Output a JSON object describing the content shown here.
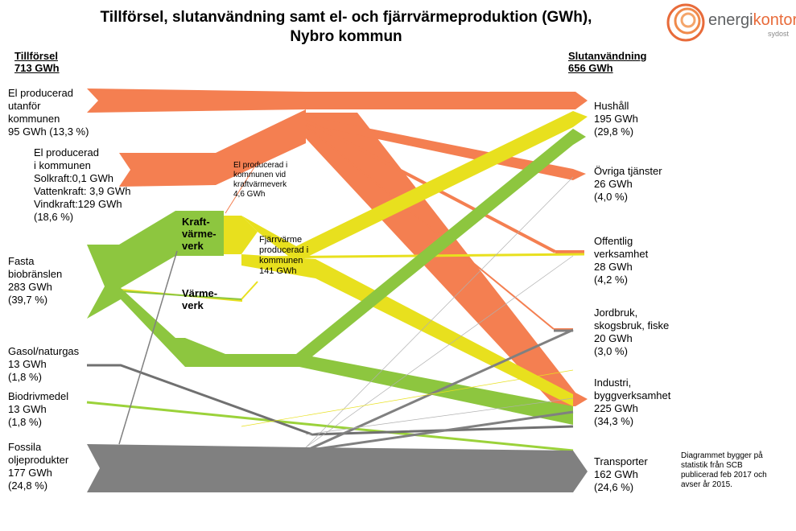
{
  "title": {
    "line1": "Tillförsel, slutanvändning samt el- och fjärrvärmeproduktion (GWh),",
    "line2": "Nybro kommun"
  },
  "logo": {
    "prefix": "energi",
    "suffix": "kontor",
    "sub": "sydost",
    "icon": "swirl-logo-icon"
  },
  "supply": {
    "header": "Tillförsel",
    "total": "713 GWh",
    "el_utanfor": [
      "El producerad",
      "utanför",
      "kommunen",
      "95 GWh (13,3 %)"
    ],
    "el_inom": [
      "El producerad",
      "i kommunen",
      "Solkraft:0,1 GWh",
      "Vattenkraft: 3,9 GWh",
      "Vindkraft:129  GWh",
      "(18,6 %)"
    ],
    "bio": [
      "Fasta",
      "biobränslen",
      "283 GWh",
      "(39,7 %)"
    ],
    "gasol": [
      "Gasol/naturgas",
      "13 GWh",
      "(1,8 %)"
    ],
    "biodriv": [
      "Biodrivmedel",
      "13 GWh",
      "(1,8 %)"
    ],
    "fossil": [
      "Fossila",
      "oljeprodukter",
      "177 GWh",
      "(24,8 %)"
    ]
  },
  "plants": {
    "kraftvarme": [
      "Kraft-",
      "värme-",
      "verk"
    ],
    "varme": [
      "Värme-",
      "verk"
    ],
    "el_kvv": [
      "El producerad i",
      "kommunen vid",
      "kraftvärmeverk",
      "4,6 GWh"
    ],
    "fjv": [
      "Fjärrvärme",
      "producerad i",
      "kommunen",
      "141 GWh"
    ]
  },
  "use": {
    "header": "Slutanvändning",
    "total": "656 GWh",
    "hushall": [
      "Hushåll",
      "195 GWh",
      "(29,8 %)"
    ],
    "ovriga": [
      "Övriga tjänster",
      "26 GWh",
      "(4,0 %)"
    ],
    "offentlig": [
      "Offentlig",
      "verksamhet",
      "28 GWh",
      "(4,2 %)"
    ],
    "jordbruk": [
      "Jordbruk,",
      "skogsbruk, fiske",
      "20 GWh",
      "(3,0 %)"
    ],
    "industri": [
      "Industri,",
      "byggverksamhet",
      "225 GWh",
      "(34,3 %)"
    ],
    "transport": [
      "Transporter",
      "162 GWh",
      "(24,6 %)"
    ]
  },
  "note": [
    "Diagrammet bygger på",
    "statistik från SCB",
    "publicerad feb 2017 och",
    "avser år 2015."
  ],
  "colors": {
    "electricity": "#f47f51",
    "biofuel": "#8dc63f",
    "district_heating": "#e8e01e",
    "fossil": "#808080",
    "gas": "#707070",
    "biodrivmedel": "#9bd23a"
  }
}
